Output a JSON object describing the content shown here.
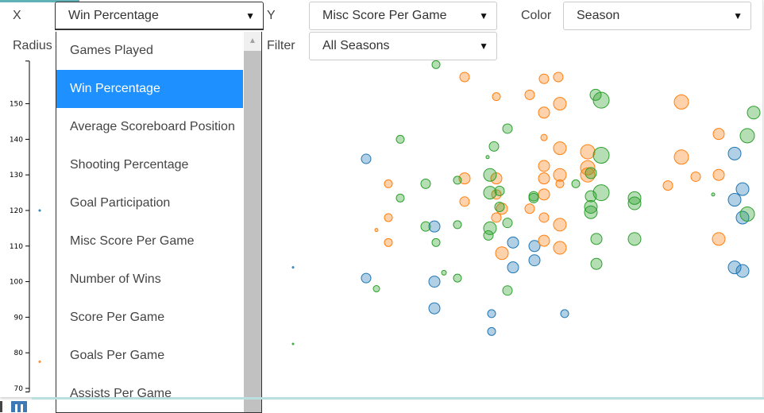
{
  "controls": {
    "x_label": "X",
    "x_value": "Win Percentage",
    "y_label": "Y",
    "y_value": "Misc Score Per Game",
    "color_label": "Color",
    "color_value": "Season",
    "radius_label": "Radius",
    "filter_label": "Filter",
    "filter_value": "All Seasons",
    "arrow": "▼"
  },
  "dropdown": {
    "items": [
      "Games Played",
      "Win Percentage",
      "Average Scoreboard Position",
      "Shooting Percentage",
      "Goal Participation",
      "Misc Score Per Game",
      "Number of Wins",
      "Score Per Game",
      "Goals Per Game",
      "Assists Per Game"
    ],
    "selected": "Win Percentage",
    "scroll_up": "▲"
  },
  "colors": {
    "blue": "#1f77b4",
    "orange": "#ff7f0e",
    "green": "#2ca02c",
    "selected_bg": "#1e90ff"
  },
  "chart_data": {
    "type": "scatter",
    "y_ticks": [
      "70",
      "80",
      "90",
      "100",
      "110",
      "120",
      "130",
      "140",
      "150"
    ],
    "ylim": [
      69,
      162
    ],
    "x_ticks_visible": false,
    "series": [
      {
        "color": "blue",
        "points": [
          [
            50,
            120,
            1
          ],
          [
            369,
            104,
            1
          ],
          [
            461,
            134.5,
            6
          ],
          [
            461,
            101,
            6
          ],
          [
            547,
            115.5,
            7
          ],
          [
            547,
            100,
            7
          ],
          [
            547,
            92.5,
            7
          ],
          [
            619,
            91,
            5
          ],
          [
            619,
            86,
            5
          ],
          [
            646,
            111,
            7
          ],
          [
            646,
            104,
            7
          ],
          [
            673,
            106,
            7
          ],
          [
            673,
            110,
            7
          ],
          [
            711,
            91,
            5
          ],
          [
            925,
            136,
            8
          ],
          [
            925,
            123,
            8
          ],
          [
            925,
            104,
            8
          ],
          [
            935,
            126,
            8
          ],
          [
            935,
            118,
            8
          ],
          [
            935,
            103,
            8
          ]
        ]
      },
      {
        "color": "orange",
        "points": [
          [
            50,
            77.5,
            1
          ],
          [
            585,
            157.5,
            6
          ],
          [
            625,
            152,
            5
          ],
          [
            667,
            152.5,
            6
          ],
          [
            685,
            157,
            6
          ],
          [
            703,
            157.5,
            6
          ],
          [
            705,
            150,
            8
          ],
          [
            685,
            147.5,
            7
          ],
          [
            685,
            140.5,
            4
          ],
          [
            705,
            137.5,
            8
          ],
          [
            685,
            132.5,
            7
          ],
          [
            685,
            129,
            7
          ],
          [
            705,
            130,
            8
          ],
          [
            740,
            136.5,
            9
          ],
          [
            740,
            132,
            9
          ],
          [
            740,
            130,
            9
          ],
          [
            489,
            127.5,
            5
          ],
          [
            489,
            118,
            5
          ],
          [
            474,
            114.5,
            2
          ],
          [
            489,
            111,
            5
          ],
          [
            585,
            129,
            7
          ],
          [
            585,
            122.5,
            6
          ],
          [
            625,
            129,
            7
          ],
          [
            625,
            124.5,
            6
          ],
          [
            632,
            120.5,
            7
          ],
          [
            667,
            120.5,
            6
          ],
          [
            685,
            124.5,
            7
          ],
          [
            685,
            118,
            6
          ],
          [
            685,
            111.5,
            7
          ],
          [
            705,
            116,
            8
          ],
          [
            705,
            109.5,
            8
          ],
          [
            705,
            127.5,
            5
          ],
          [
            632,
            108,
            8
          ],
          [
            625,
            118,
            6
          ],
          [
            858,
            150.5,
            9
          ],
          [
            858,
            135,
            9
          ],
          [
            841,
            127,
            6
          ],
          [
            876,
            129.5,
            6
          ],
          [
            905,
            141.5,
            7
          ],
          [
            905,
            130,
            7
          ],
          [
            905,
            112,
            8
          ]
        ]
      },
      {
        "color": "green",
        "points": [
          [
            369,
            82.5,
            1
          ],
          [
            474,
            98,
            4
          ],
          [
            504,
            140,
            5
          ],
          [
            504,
            123.5,
            5
          ],
          [
            536,
            127.5,
            6
          ],
          [
            536,
            115.5,
            6
          ],
          [
            549,
            161,
            5
          ],
          [
            549,
            111,
            5
          ],
          [
            559,
            102.5,
            3
          ],
          [
            576,
            128.5,
            5
          ],
          [
            576,
            116,
            5
          ],
          [
            576,
            101,
            5
          ],
          [
            614,
            135,
            2
          ],
          [
            622,
            138,
            6
          ],
          [
            617,
            130,
            8
          ],
          [
            617,
            125,
            8
          ],
          [
            617,
            115,
            8
          ],
          [
            615,
            113,
            6
          ],
          [
            629,
            125.5,
            6
          ],
          [
            629,
            121,
            6
          ],
          [
            639,
            143,
            6
          ],
          [
            639,
            116.5,
            6
          ],
          [
            639,
            97.5,
            6
          ],
          [
            672,
            124,
            6
          ],
          [
            672,
            123.5,
            6
          ],
          [
            725,
            127.5,
            5
          ],
          [
            744,
            124,
            7
          ],
          [
            744,
            121,
            8
          ],
          [
            744,
            119.5,
            8
          ],
          [
            744,
            130.5,
            7
          ],
          [
            750,
            152.5,
            7
          ],
          [
            757,
            151,
            10
          ],
          [
            757,
            135.5,
            10
          ],
          [
            757,
            125,
            10
          ],
          [
            751,
            112,
            7
          ],
          [
            751,
            105,
            7
          ],
          [
            799,
            123.5,
            8
          ],
          [
            799,
            122,
            8
          ],
          [
            799,
            112,
            8
          ],
          [
            898,
            124.5,
            2
          ],
          [
            941,
            141,
            9
          ],
          [
            941,
            119,
            9
          ],
          [
            949,
            147.5,
            8
          ]
        ]
      }
    ]
  }
}
